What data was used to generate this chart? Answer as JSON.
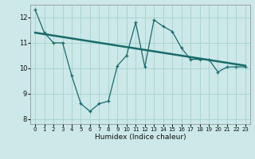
{
  "xlabel": "Humidex (Indice chaleur)",
  "ylabel": "",
  "bg_color": "#cce8e8",
  "grid_color": "#aad4d4",
  "line_color": "#1a6b6b",
  "curve_x": [
    0,
    1,
    2,
    3,
    4,
    5,
    6,
    7,
    8,
    9,
    10,
    11,
    12,
    13,
    14,
    15,
    16,
    17,
    18,
    19,
    20,
    21,
    22,
    23
  ],
  "curve_y": [
    12.3,
    11.4,
    11.0,
    11.0,
    9.7,
    8.6,
    8.3,
    8.6,
    8.7,
    10.1,
    10.5,
    11.8,
    10.05,
    11.9,
    11.65,
    11.45,
    10.8,
    10.35,
    10.35,
    10.35,
    9.85,
    10.05,
    10.05,
    10.05
  ],
  "trend_x": [
    0,
    23
  ],
  "trend_y": [
    11.4,
    10.1
  ],
  "ylim": [
    7.8,
    12.5
  ],
  "xlim": [
    -0.5,
    23.5
  ],
  "yticks": [
    8,
    9,
    10,
    11,
    12
  ],
  "xticks": [
    0,
    1,
    2,
    3,
    4,
    5,
    6,
    7,
    8,
    9,
    10,
    11,
    12,
    13,
    14,
    15,
    16,
    17,
    18,
    19,
    20,
    21,
    22,
    23
  ]
}
